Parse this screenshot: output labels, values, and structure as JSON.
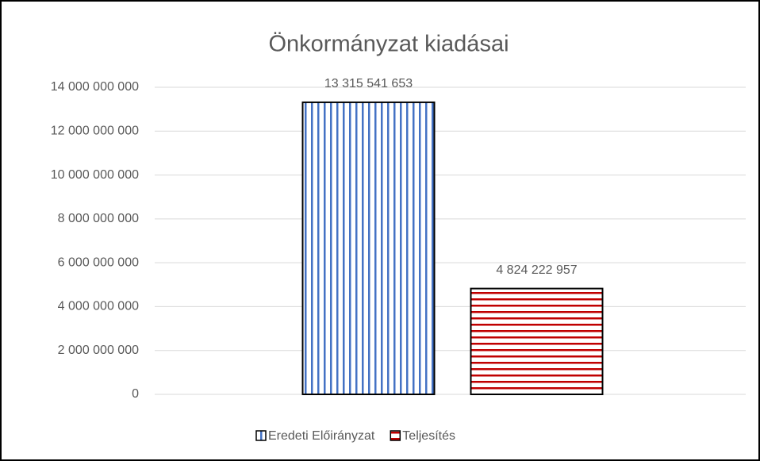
{
  "chart_data": {
    "type": "bar",
    "title": "Önkormányzat kiadásai",
    "categories": [
      null
    ],
    "series": [
      {
        "name": "Eredeti Előirányzat",
        "color": "#4472c4",
        "pattern": "vertical",
        "values": [
          13315541653
        ],
        "value_labels": [
          "13 315 541 653"
        ]
      },
      {
        "name": "Teljesítés",
        "color": "#c00000",
        "pattern": "horizontal",
        "values": [
          4824222957
        ],
        "value_labels": [
          "4 824 222 957"
        ]
      }
    ],
    "ylim": [
      0,
      14000000000
    ],
    "yticks": [
      0,
      {
        "value": 2000000000,
        "label": "2 000 000 000"
      },
      {
        "value": 4000000000,
        "label": "4 000 000 000"
      },
      {
        "value": 6000000000,
        "label": "6 000 000 000"
      },
      {
        "value": 8000000000,
        "label": "8 000 000 000"
      },
      {
        "value": 10000000000,
        "label": "10 000 000 000"
      },
      {
        "value": 12000000000,
        "label": "12 000 000 000"
      },
      {
        "value": 14000000000,
        "label": "14 000 000 000"
      }
    ],
    "grid": true,
    "legend": "bottom"
  }
}
